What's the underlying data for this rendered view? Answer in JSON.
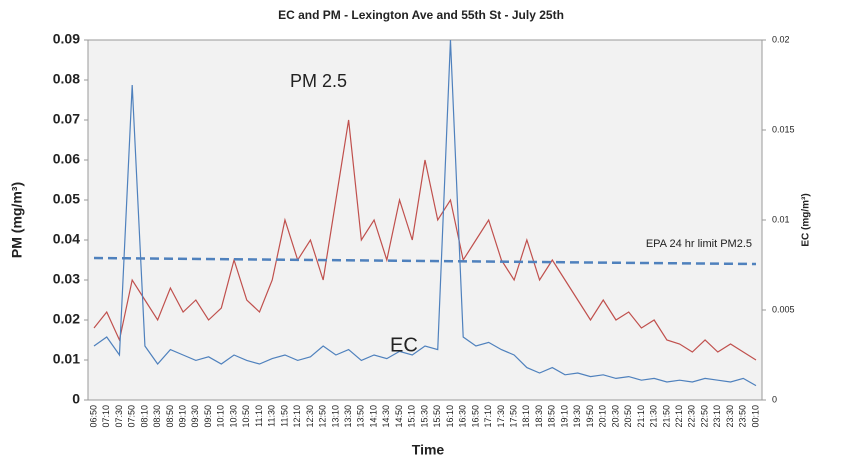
{
  "chart_data": {
    "type": "line",
    "title": "EC and PM - Lexington Ave and 55th St - July 25th",
    "x_label": "Time",
    "y_label": "PM (mg/m³)",
    "y2_label": "EC (mg/m³)",
    "categories": [
      "06:50",
      "07:10",
      "07:30",
      "07:50",
      "08:10",
      "08:30",
      "08:50",
      "09:10",
      "09:30",
      "09:50",
      "10:10",
      "10:30",
      "10:50",
      "11:10",
      "11:30",
      "11:50",
      "12:10",
      "12:30",
      "12:50",
      "13:10",
      "13:30",
      "13:50",
      "14:10",
      "14:30",
      "14:50",
      "15:10",
      "15:30",
      "15:50",
      "16:10",
      "16:30",
      "16:50",
      "17:10",
      "17:30",
      "17:50",
      "18:10",
      "18:30",
      "18:50",
      "19:10",
      "19:30",
      "19:50",
      "20:10",
      "20:30",
      "20:50",
      "21:10",
      "21:30",
      "21:50",
      "22:10",
      "22:30",
      "22:50",
      "23:10",
      "23:30",
      "23:50",
      "00:10"
    ],
    "series": [
      {
        "name": "PM 2.5",
        "color": "#c0504d",
        "axis": "y",
        "values": [
          0.018,
          0.022,
          0.015,
          0.03,
          0.025,
          0.02,
          0.028,
          0.022,
          0.025,
          0.02,
          0.023,
          0.035,
          0.025,
          0.022,
          0.03,
          0.045,
          0.035,
          0.04,
          0.03,
          0.05,
          0.07,
          0.04,
          0.045,
          0.035,
          0.05,
          0.04,
          0.06,
          0.045,
          0.05,
          0.035,
          0.04,
          0.045,
          0.035,
          0.03,
          0.04,
          0.03,
          0.035,
          0.03,
          0.025,
          0.02,
          0.025,
          0.02,
          0.022,
          0.018,
          0.02,
          0.015,
          0.014,
          0.012,
          0.015,
          0.012,
          0.014,
          0.012,
          0.01
        ]
      },
      {
        "name": "EC",
        "color": "#4f81bd",
        "axis": "y2",
        "values": [
          0.003,
          0.0035,
          0.0025,
          0.0175,
          0.003,
          0.002,
          0.0028,
          0.0025,
          0.0022,
          0.0024,
          0.002,
          0.0025,
          0.0022,
          0.002,
          0.0023,
          0.0025,
          0.0022,
          0.0024,
          0.003,
          0.0025,
          0.0028,
          0.0022,
          0.0025,
          0.0023,
          0.0027,
          0.0025,
          0.003,
          0.0028,
          0.02,
          0.0035,
          0.003,
          0.0032,
          0.0028,
          0.0025,
          0.0018,
          0.0015,
          0.0018,
          0.0014,
          0.0015,
          0.0013,
          0.0014,
          0.0012,
          0.0013,
          0.0011,
          0.0012,
          0.001,
          0.0011,
          0.001,
          0.0012,
          0.0011,
          0.001,
          0.0012,
          0.0008
        ]
      }
    ],
    "reference_line": {
      "label": "EPA 24 hr limit PM2.5",
      "color": "#4f81bd",
      "start": 0.0355,
      "end": 0.034
    },
    "ylim": [
      0,
      0.09
    ],
    "yticks": [
      0,
      0.01,
      0.02,
      0.03,
      0.04,
      0.05,
      0.06,
      0.07,
      0.08,
      0.09
    ],
    "y2lim": [
      0,
      0.02
    ],
    "y2ticks": [
      0,
      0.005,
      0.01,
      0.015,
      0.02
    ]
  }
}
